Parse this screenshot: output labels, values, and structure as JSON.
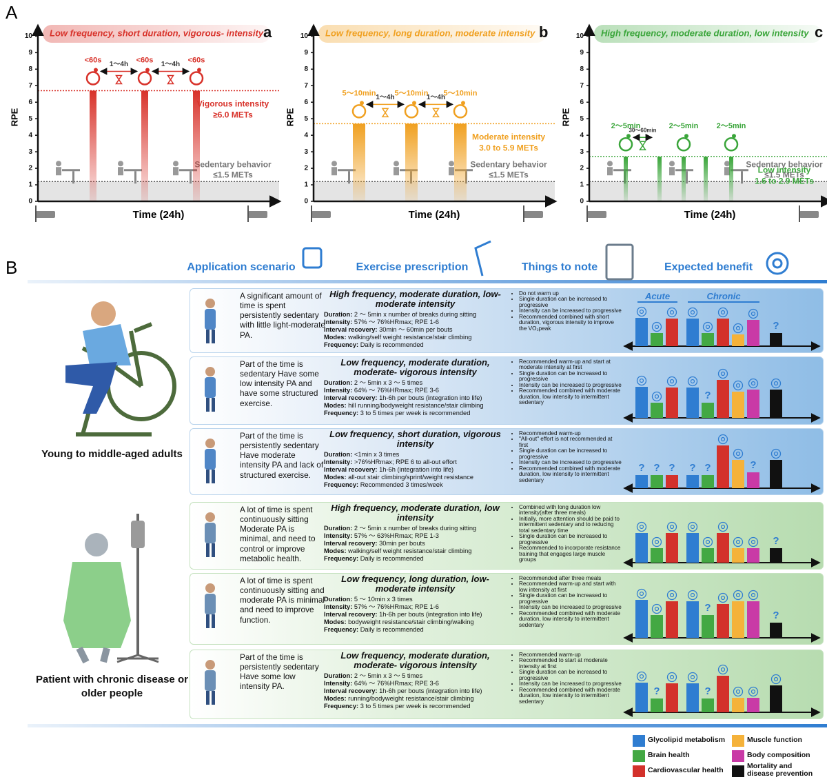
{
  "panel_a": {
    "label": "A",
    "y_label": "RPE",
    "x_label": "Time (24h)",
    "ylim": [
      0,
      10.6
    ],
    "yticks": [
      0,
      1,
      2,
      3,
      4,
      5,
      6,
      7,
      8,
      9,
      10
    ],
    "sedentary_level": 1.2,
    "sedentary_label": "Sedentary behavior",
    "sedentary_mets": "≤1.5 METs",
    "charts": [
      {
        "letter": "a",
        "title": "Low frequency, short duration, vigorous- intensity",
        "color": "#d8322a",
        "values": [
          6.7,
          6.7,
          6.7
        ],
        "threshold": 6.7,
        "intensity_label": "Vigorous intensity",
        "intensity_mets": "≥6.0 METs",
        "bout_labels": [
          "<60s",
          "<60s",
          "<60s"
        ],
        "gap_labels": [
          "1～4h",
          "1～4h"
        ]
      },
      {
        "letter": "b",
        "title": "Low frequency, long duration, moderate intensity",
        "color": "#f0a020",
        "values": [
          4.7,
          4.7,
          4.7
        ],
        "threshold": 4.7,
        "intensity_label": "Moderate intensity",
        "intensity_mets": "3.0 to 5.9 METs",
        "bout_labels": [
          "5～10min",
          "5～10min",
          "5～10min"
        ],
        "gap_labels": [
          "1～4h",
          "1～4h"
        ]
      },
      {
        "letter": "c",
        "title": "High frequency, moderate duration, low intensity",
        "color": "#3aa53a",
        "values": [
          2.7,
          2.7,
          2.7,
          2.7,
          2.7
        ],
        "threshold": 2.7,
        "intensity_label": "Low intensity",
        "intensity_mets": "1.6 to 2.9 METs",
        "bout_labels": [
          "2～5min",
          "2～5min",
          "2～5min"
        ],
        "gap_labels": [
          "30～60min"
        ]
      }
    ]
  },
  "panel_b": {
    "label": "B",
    "headers": [
      "Application scenario",
      "Exercise prescription",
      "Things to note",
      "Expected benefit"
    ],
    "benefit_headers": [
      "Acute",
      "Chronic"
    ],
    "groups": [
      {
        "name": "Young to middle-aged adults",
        "rows": [
          {
            "scenario": "A significant amount of time is spent persistently sedentary with little light-moderate PA.",
            "title": "High frequency, moderate duration, low- moderate intensity",
            "details": [
              {
                "label": "Duration:",
                "text": "2 ～ 5min x number of breaks during sitting"
              },
              {
                "label": "Intensity:",
                "text": "57% ～ 76%HRmax; RPE 1-6"
              },
              {
                "label": "Interval recovery:",
                "text": "30min ～ 60min per bouts"
              },
              {
                "label": "Modes:",
                "text": "walking/self weight resistance/stair climbing"
              },
              {
                "label": "Frequency:",
                "text": "Daily is recommended"
              }
            ],
            "notes": [
              "Do not warm up",
              "Single duration can be increased to progressive",
              "Intensity can be increased to progressive",
              "Recommended combined with short duration, vigorous intensity to improve the VO₂peak"
            ],
            "benefits": {
              "values": [
                8.2,
                3.8,
                8,
                8,
                3.8,
                8,
                3.4,
                7.6,
                3.8
              ],
              "labels": [
                null,
                null,
                null,
                null,
                null,
                null,
                null,
                null,
                "?"
              ]
            }
          },
          {
            "scenario": "Part of the time is sedentary Have some low intensity PA and have some structured exercise.",
            "title": "Low frequency, moderate duration, moderate- vigorous intensity",
            "details": [
              {
                "label": "Duration:",
                "text": "2 ～ 5min x 3 ～ 5 times"
              },
              {
                "label": "Intensity:",
                "text": "64% ～ 76%HRmax; RPE 3-6"
              },
              {
                "label": "Interval recovery:",
                "text": "1h-6h per bouts (integration into life)"
              },
              {
                "label": "Modes:",
                "text": "hill running/bodyweight resistance/stair climbing"
              },
              {
                "label": "Frequency:",
                "text": "3 to 5 times per week is recommended"
              }
            ],
            "notes": [
              "Recommended warm-up and start at moderate intensity at first",
              "Single duration can be increased to progressive",
              "Intensity can be increased to progressive",
              "Recommended combined with moderate duration, low intensity to intermittent sedentary"
            ],
            "benefits": {
              "values": [
                9,
                4.4,
                8.8,
                8.8,
                4.4,
                11,
                7.6,
                8.2,
                8.2
              ],
              "labels": [
                null,
                null,
                null,
                null,
                "?",
                null,
                null,
                null,
                null
              ]
            }
          },
          {
            "scenario": "Part of the time is persistently sedentary Have moderate intensity PA and lack of structured exercise.",
            "title": "Low frequency, short duration, vigorous intensity",
            "details": [
              {
                "label": "Duration:",
                "text": "<1min x 3 times"
              },
              {
                "label": "Intensity:",
                "text": ">76%HRmax; RPE 6 to all-out effort"
              },
              {
                "label": "Interval recovery:",
                "text": "1h-6h (integration into life)"
              },
              {
                "label": "Modes:",
                "text": "all-out stair climbing/sprint/weight resistance"
              },
              {
                "label": "Frequency:",
                "text": "Recommended 3 times/week"
              }
            ],
            "notes": [
              "Recommended warm-up",
              "\"All-out\" effort is not recommended at first",
              "Single duration can be increased to progressive",
              "Intensity can be increased to progressive",
              "Recommended combined with moderate duration, low intensity to intermittent sedentary"
            ],
            "benefits": {
              "values": [
                3.8,
                3.8,
                3.8,
                3.8,
                3.8,
                12.4,
                8.2,
                4.6,
                8.2
              ],
              "labels": [
                "?",
                "?",
                "?",
                "?",
                "?",
                null,
                null,
                "?",
                null
              ]
            }
          }
        ]
      },
      {
        "name": "Patient with chronic disease or older people",
        "rows": [
          {
            "scenario": "A lot of time is spent continuously sitting Moderate PA is minimal, and need to control or improve metabolic health.",
            "title": "High frequency, moderate duration, low intensity",
            "details": [
              {
                "label": "Duration:",
                "text": "2 ～ 5min x number of breaks during sitting"
              },
              {
                "label": "Intensity:",
                "text": "57% ～ 63%HRmax; RPE 1-3"
              },
              {
                "label": "Interval recovery:",
                "text": "30min per bouts"
              },
              {
                "label": "Modes:",
                "text": "walking/self weight resistance/stair climbing"
              },
              {
                "label": "Frequency:",
                "text": "Daily is recommended"
              }
            ],
            "notes": [
              "Combined with long duration low intensity(after three meals)",
              "Initially, more attention should be paid to intermittent sedentary and to reducing total sedentary time",
              "Single duration can be increased to progressive",
              "Recommended to incorporate resistance training that engages large muscle groups"
            ],
            "benefits": {
              "values": [
                8.6,
                4.2,
                8.6,
                8.6,
                4.2,
                8.6,
                4.2,
                4.2,
                4.2
              ],
              "labels": [
                null,
                null,
                null,
                null,
                null,
                null,
                null,
                null,
                "?"
              ]
            }
          },
          {
            "scenario": "A lot of time is spent continuously sitting and moderate PA is minimal and need to improve function.",
            "title": "Low frequency, long duration, low- moderate intensity",
            "details": [
              {
                "label": "Duration:",
                "text": "5 ～ 10min x 3 times"
              },
              {
                "label": "Intensity:",
                "text": "57% ～ 76%HRmax; RPE 1-6"
              },
              {
                "label": "Interval recovery:",
                "text": "1h-6h per bouts (integration into life)"
              },
              {
                "label": "Modes:",
                "text": "bodyweight resistance/stair climbing/walking"
              },
              {
                "label": "Frequency:",
                "text": "Daily is recommended"
              }
            ],
            "notes": [
              "Recommended after three meals",
              "Recommended warm-up and start with low intensity at first",
              "Single duration can be increased to progressive",
              "Intensity can be increased to progressive",
              "Recommended combined with moderate duration, low intensity to intermittent sedentary"
            ],
            "benefits": {
              "values": [
                11,
                6.6,
                10.6,
                10.6,
                6.6,
                9.8,
                10.6,
                10.6,
                4.4
              ],
              "labels": [
                null,
                null,
                null,
                null,
                "?",
                null,
                null,
                null,
                "?"
              ]
            }
          },
          {
            "scenario": "Part of the time is persistently sedentary Have some low intensity PA.",
            "title": "Low frequency, moderate duration, moderate- vigorous intensity",
            "details": [
              {
                "label": "Duration:",
                "text": "2 ～ 5min x 3 ～ 5 times"
              },
              {
                "label": "Intensity:",
                "text": "64% ～ 76%HRmax; RPE 3-6"
              },
              {
                "label": "Interval recovery:",
                "text": "1h-6h per bouts (integration into life)"
              },
              {
                "label": "Modes:",
                "text": "running/bodyweight resistance/stair climbing"
              },
              {
                "label": "Frequency:",
                "text": "3 to 5 times per week is recommended"
              }
            ],
            "notes": [
              "Recommended warm-up",
              "Recommended to start at moderate intensity at first",
              "Single duration can be increased to progressive",
              "Intensity can be increased to progressive",
              "Recommended combined with moderate duration, low intensity to intermittent sedentary"
            ],
            "benefits": {
              "values": [
                8.6,
                4,
                8.4,
                8.4,
                4,
                10.6,
                4.2,
                4.2,
                7.8
              ],
              "labels": [
                null,
                "?",
                null,
                null,
                "?",
                null,
                null,
                null,
                null
              ]
            }
          }
        ]
      }
    ]
  },
  "legend": [
    {
      "name": "Glycolipid metabolism",
      "color": "#2f7dd1"
    },
    {
      "name": "Brain health",
      "color": "#43a843"
    },
    {
      "name": "Cardiovascular health",
      "color": "#d3312b"
    },
    {
      "name": "Muscle function",
      "color": "#f5b23a"
    },
    {
      "name": "Body composition",
      "color": "#c93aa6"
    },
    {
      "name": "Mortality and disease prevention",
      "color": "#111111"
    }
  ]
}
